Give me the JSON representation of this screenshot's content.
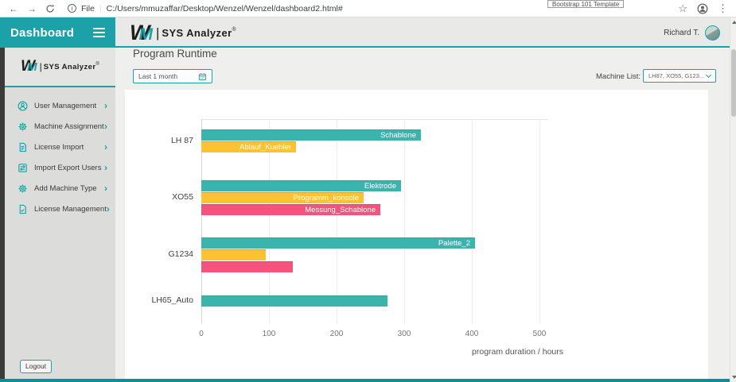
{
  "browser": {
    "tab_tooltip": "Bootstrap 101 Template",
    "address_scheme": "File",
    "address_url": "C:/Users/mmuzaffar/Desktop/Wenzel/Wenzel/dashboard2.html#"
  },
  "glyphs": {
    "back": "←",
    "forward": "→",
    "star": "☆",
    "menu_dots": "⋮",
    "chevron_right": "›",
    "info": "i",
    "address_divider": "|"
  },
  "header": {
    "title": "Dashboard",
    "user_name": "Richard T."
  },
  "logo": {
    "w": "W",
    "m": "M",
    "divider": "|",
    "name": "SYS Analyzer",
    "reg": "®"
  },
  "sidebar": {
    "items": [
      {
        "label": "User Management",
        "icon": "user-icon"
      },
      {
        "label": "Machine Assignment",
        "icon": "gear-icon"
      },
      {
        "label": "License Import",
        "icon": "file-icon"
      },
      {
        "label": "Import Export Users",
        "icon": "import-export-icon"
      },
      {
        "label": "Add Machine Type",
        "icon": "gear-icon"
      },
      {
        "label": "License Management",
        "icon": "license-file-icon"
      }
    ],
    "logout_label": "Logout"
  },
  "filters": {
    "title": "Program Runtime",
    "date_range": "Last 1 month",
    "machine_list_label": "Machine List:",
    "machine_list_value": "LH87, XO55, G123..."
  },
  "chart_data": {
    "type": "bar",
    "orientation": "horizontal",
    "title": "Program Runtime",
    "xlabel": "program duration / hours",
    "ylabel": "",
    "xticks": [
      0,
      100,
      200,
      300,
      400,
      500
    ],
    "xlim": [
      0,
      515
    ],
    "grid": true,
    "unit": "hours",
    "categories": [
      "LH 87",
      "XO55",
      "G1234",
      "LH65_Auto"
    ],
    "groups": [
      {
        "category": "LH 87",
        "bars": [
          {
            "program": "Schablone",
            "value": 325,
            "color": "#3cb4ae"
          },
          {
            "program": "Ablauf_Kuehler",
            "value": 140,
            "color": "#fcc232"
          }
        ]
      },
      {
        "category": "XO55",
        "bars": [
          {
            "program": "Elektrode",
            "value": 295,
            "color": "#3cb4ae"
          },
          {
            "program": "Programm_konsole",
            "value": 240,
            "color": "#fcc232"
          },
          {
            "program": "Messung_Schablone",
            "value": 265,
            "color": "#f4537e"
          }
        ]
      },
      {
        "category": "G1234",
        "bars": [
          {
            "program": "Palette_2",
            "value": 405,
            "color": "#3cb4ae"
          },
          {
            "program": "",
            "value": 95,
            "color": "#fcc232"
          },
          {
            "program": "",
            "value": 135,
            "color": "#f4537e"
          }
        ]
      },
      {
        "category": "LH65_Auto",
        "bars": [
          {
            "program": "",
            "value": 275,
            "color": "#3cb4ae"
          }
        ]
      }
    ]
  },
  "colors": {
    "accent": "#1ba1a7",
    "bar_teal": "#3cb4ae",
    "bar_yellow": "#fcc232",
    "bar_pink": "#f4537e",
    "footer_teal": "#128d94"
  }
}
